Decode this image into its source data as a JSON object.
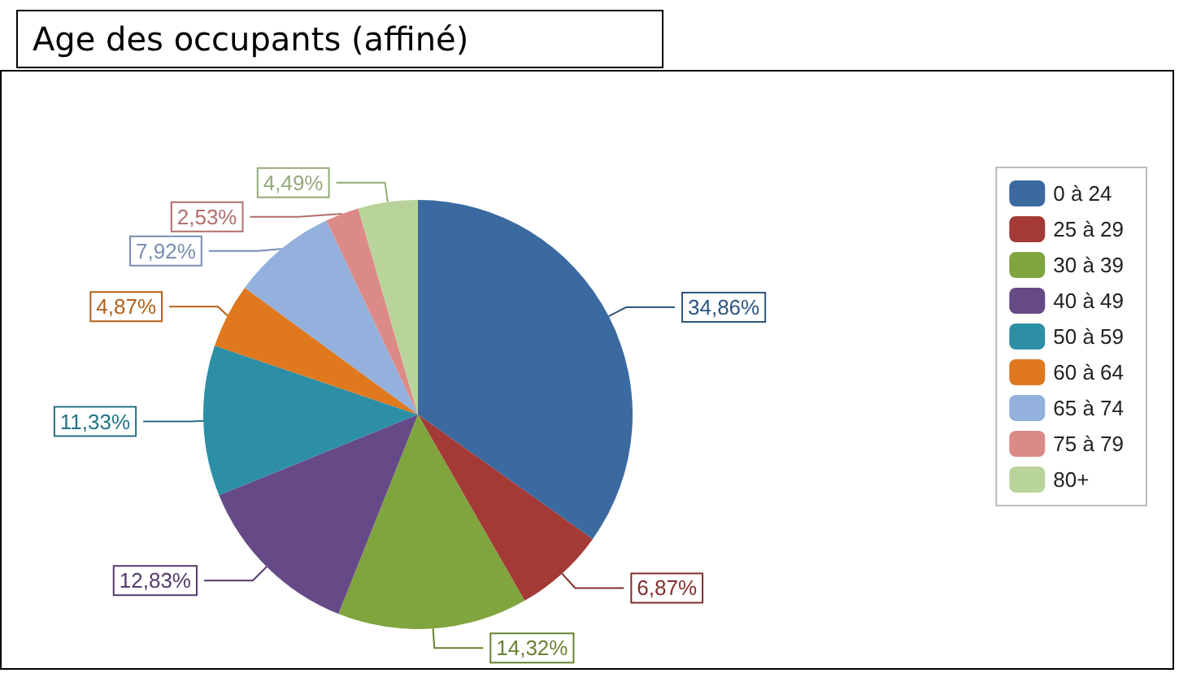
{
  "chart_data": {
    "type": "pie",
    "title": "Age des occupants (affiné)",
    "categories": [
      "0 à 24",
      "25 à 29",
      "30 à 39",
      "40 à 49",
      "50 à 59",
      "60 à 64",
      "65 à 74",
      "75 à 79",
      "80+"
    ],
    "values": [
      34.86,
      6.87,
      14.32,
      12.83,
      11.33,
      4.87,
      7.92,
      2.53,
      4.49
    ],
    "value_labels": [
      "34,86%",
      "6,87%",
      "14,32%",
      "12,83%",
      "11,33%",
      "4,87%",
      "7,92%",
      "2,53%",
      "4,49%"
    ],
    "colors": [
      "#3a6aa0",
      "#a33a36",
      "#80a43e",
      "#664a87",
      "#2d8fa6",
      "#e0781e",
      "#93b1dc",
      "#dc8a88",
      "#b9d49a"
    ],
    "legend": "right"
  }
}
